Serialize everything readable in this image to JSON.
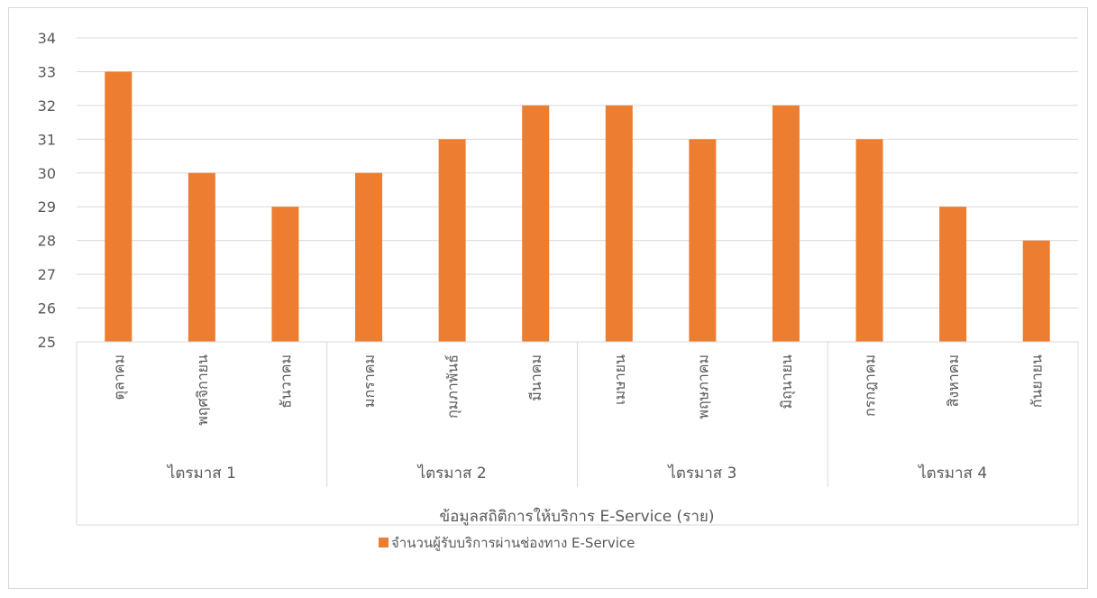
{
  "chart_data": {
    "type": "bar",
    "title": "",
    "xlabel": "ข้อมูลสถิติการให้บริการ E-Service (ราย)",
    "ylabel": "",
    "ylim": [
      25,
      34
    ],
    "yticks": [
      25,
      26,
      27,
      28,
      29,
      30,
      31,
      32,
      33,
      34
    ],
    "grid": true,
    "legend_position": "bottom",
    "categories": [
      "ตุลาคม",
      "พฤศจิกายน",
      "ธันวาคม",
      "มกราคม",
      "กุมภาพันธ์",
      "มีนาคม",
      "เมษายน",
      "พฤษภาคม",
      "มิถุนายน",
      "กรกฎาคม",
      "สิงหาคม",
      "กันยายน"
    ],
    "groups": [
      {
        "label": "ไตรมาส 1",
        "count": 3
      },
      {
        "label": "ไตรมาส 2",
        "count": 3
      },
      {
        "label": "ไตรมาส 3",
        "count": 3
      },
      {
        "label": "ไตรมาส 4",
        "count": 3
      }
    ],
    "series": [
      {
        "name": "จำนวนผู้รับบริการผ่านช่องทาง E-Service",
        "color": "#ed7d31",
        "values": [
          33,
          30,
          29,
          30,
          31,
          32,
          32,
          31,
          32,
          31,
          29,
          28
        ]
      }
    ]
  }
}
